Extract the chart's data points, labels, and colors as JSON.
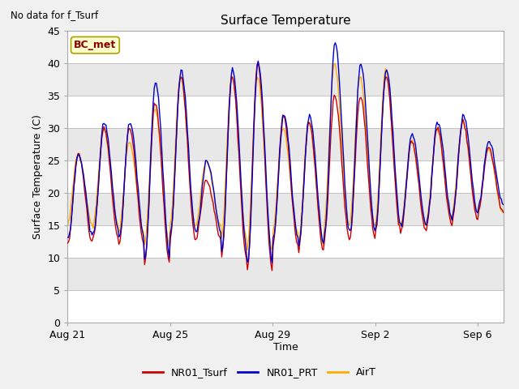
{
  "title": "Surface Temperature",
  "ylabel": "Surface Temperature (C)",
  "xlabel": "Time",
  "annotation": "No data for f_Tsurf",
  "bc_met_label": "BC_met",
  "ylim": [
    0,
    45
  ],
  "yticks": [
    0,
    5,
    10,
    15,
    20,
    25,
    30,
    35,
    40,
    45
  ],
  "xtick_labels": [
    "Aug 21",
    "Aug 25",
    "Aug 29",
    "Sep 2",
    "Sep 6"
  ],
  "xtick_positions": [
    0,
    4,
    8,
    12,
    16
  ],
  "legend_labels": [
    "NR01_Tsurf",
    "NR01_PRT",
    "AirT"
  ],
  "line_colors": [
    "#cc0000",
    "#0000cc",
    "#ffaa00"
  ],
  "band_colors": [
    "#ffffff",
    "#e8e8e8"
  ],
  "n_days": 17,
  "day_mins_tsurf": [
    12,
    13,
    12,
    9,
    13,
    13,
    10,
    8,
    12,
    11,
    13,
    13,
    14,
    14,
    15,
    16,
    17
  ],
  "day_maxs_tsurf": [
    26,
    30,
    30,
    34,
    38,
    22,
    38,
    40,
    32,
    31,
    35,
    35,
    38,
    28,
    30,
    31,
    27
  ],
  "day_mins_prt": [
    13,
    14,
    13,
    10,
    14,
    14,
    11,
    9,
    13,
    12,
    14,
    14,
    15,
    15,
    16,
    17,
    18
  ],
  "day_maxs_prt": [
    26,
    31,
    31,
    37,
    39,
    25,
    39,
    40,
    32,
    32,
    43,
    40,
    39,
    29,
    31,
    32,
    28
  ],
  "day_mins_airt": [
    15,
    15,
    14,
    12,
    15,
    15,
    13,
    11,
    14,
    12,
    15,
    15,
    15,
    15,
    16,
    17,
    17
  ],
  "day_maxs_airt": [
    26,
    30,
    28,
    33,
    38,
    25,
    38,
    38,
    30,
    31,
    40,
    38,
    39,
    28,
    30,
    31,
    27
  ],
  "figsize": [
    6.4,
    4.8
  ],
  "dpi": 100
}
